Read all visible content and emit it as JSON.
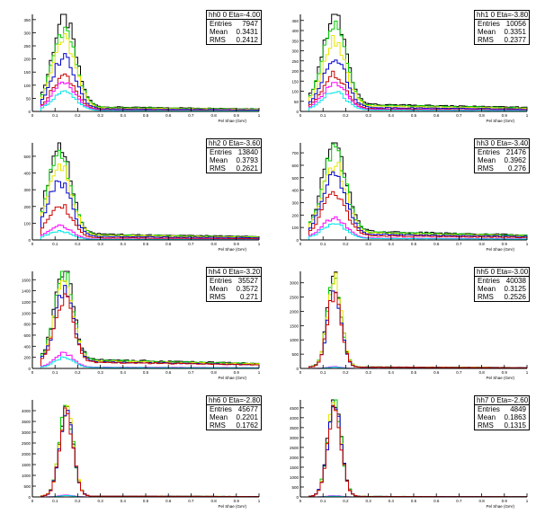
{
  "chart_data": [
    {
      "type": "line",
      "stats": {
        "name": "hh0",
        "eta": "0 Eta=-4.00",
        "entries_label": "Entries",
        "entries": "7947",
        "mean_label": "Mean",
        "mean": "0.3431",
        "rms_label": "RMS",
        "rms": "0.2412"
      },
      "ylim": [
        0,
        370
      ],
      "xlim": [
        0,
        1.0
      ],
      "yticks": [
        0,
        50,
        100,
        150,
        200,
        250,
        300,
        350
      ],
      "peak": 0.14,
      "width": 0.05,
      "tail": 20,
      "xlabel": "Pel Shae (GeV)",
      "series_peaks": [
        340,
        300,
        260,
        200,
        130,
        100,
        70
      ]
    },
    {
      "type": "line",
      "stats": {
        "name": "hh1",
        "eta": "0 Eta=-3.80",
        "entries_label": "Entries",
        "entries": "10056",
        "mean_label": "Mean",
        "mean": "0.3351",
        "rms_label": "RMS",
        "rms": "0.2377"
      },
      "ylim": [
        0,
        480
      ],
      "xlim": [
        0,
        1.0
      ],
      "yticks": [
        0,
        50,
        100,
        150,
        200,
        250,
        300,
        350,
        400,
        450
      ],
      "peak": 0.15,
      "width": 0.05,
      "tail": 40,
      "xlabel": "Pel Shae (GeV)",
      "series_peaks": [
        440,
        390,
        330,
        250,
        170,
        130,
        90
      ]
    },
    {
      "type": "line",
      "stats": {
        "name": "hh2",
        "eta": "0 Eta=-3.60",
        "entries_label": "Entries",
        "entries": "13840",
        "mean_label": "Mean",
        "mean": "0.3793",
        "rms_label": "RMS",
        "rms": "0.2621"
      },
      "ylim": [
        0,
        580
      ],
      "xlim": [
        0,
        1.0
      ],
      "yticks": [
        0,
        100,
        200,
        300,
        400,
        500
      ],
      "peak": 0.12,
      "width": 0.05,
      "tail": 40,
      "xlabel": "Pel Shae (GeV)",
      "series_peaks": [
        540,
        480,
        430,
        330,
        200,
        80,
        50
      ]
    },
    {
      "type": "line",
      "stats": {
        "name": "hh3",
        "eta": "0 Eta=-3.40",
        "entries_label": "Entries",
        "entries": "21476",
        "mean_label": "Mean",
        "mean": "0.3962",
        "rms_label": "RMS",
        "rms": "0.276"
      },
      "ylim": [
        0,
        780
      ],
      "xlim": [
        0,
        1.0
      ],
      "yticks": [
        0,
        100,
        200,
        300,
        400,
        500,
        600,
        700
      ],
      "peak": 0.15,
      "width": 0.05,
      "tail": 80,
      "xlabel": "Pel Shae (GeV)",
      "series_peaks": [
        720,
        650,
        560,
        480,
        350,
        160,
        120
      ]
    },
    {
      "type": "line",
      "stats": {
        "name": "hh4",
        "eta": "0 Eta=-3.20",
        "entries_label": "Entries",
        "entries": "35527",
        "mean_label": "Mean",
        "mean": "0.3572",
        "rms_label": "RMS",
        "rms": "0.271"
      },
      "ylim": [
        0,
        1750
      ],
      "xlim": [
        0,
        1.0
      ],
      "yticks": [
        0,
        200,
        400,
        600,
        800,
        1000,
        1200,
        1400,
        1600
      ],
      "peak": 0.14,
      "width": 0.04,
      "tail": 180,
      "xlabel": "Pel Shae (GeV)",
      "series_peaks": [
        1650,
        1550,
        1400,
        1250,
        1150,
        250,
        180
      ]
    },
    {
      "type": "line",
      "stats": {
        "name": "hh5",
        "eta": "0 Eta=-3.00",
        "entries_label": "Entries",
        "entries": "40038",
        "mean_label": "Mean",
        "mean": "0.3125",
        "rms_label": "RMS",
        "rms": "0.2526"
      },
      "ylim": [
        0,
        3400
      ],
      "xlim": [
        0,
        1.0
      ],
      "yticks": [
        0,
        500,
        1000,
        1500,
        2000,
        2500,
        3000
      ],
      "peak": 0.15,
      "width": 0.03,
      "tail": 60,
      "xlabel": "Pel Shae (GeV)",
      "series_peaks": [
        3250,
        3200,
        3150,
        2700,
        2600,
        60,
        40
      ]
    },
    {
      "type": "line",
      "stats": {
        "name": "hh6",
        "eta": "0 Eta=-2.80",
        "entries_label": "Entries",
        "entries": "45677",
        "mean_label": "Mean",
        "mean": "0.2201",
        "rms_label": "RMS",
        "rms": "0.1762"
      },
      "ylim": [
        0,
        4500
      ],
      "xlim": [
        0,
        1.0
      ],
      "yticks": [
        0,
        500,
        1000,
        1500,
        2000,
        2500,
        3000,
        3500,
        4000
      ],
      "peak": 0.15,
      "width": 0.03,
      "tail": 40,
      "xlabel": "Pel Shae (GeV)",
      "series_peaks": [
        4150,
        4100,
        4050,
        3900,
        3800,
        80,
        60
      ]
    },
    {
      "type": "line",
      "stats": {
        "name": "hh7",
        "eta": "0 Eta=-2.60",
        "entries_label": "Entries",
        "entries": "4849",
        "mean_label": "Mean",
        "mean": "0.1863",
        "rms_label": "RMS",
        "rms": "0.1315"
      },
      "ylim": [
        0,
        4900
      ],
      "xlim": [
        0,
        1.0
      ],
      "yticks": [
        0,
        500,
        1000,
        1500,
        2000,
        2500,
        3000,
        3500,
        4000,
        4500
      ],
      "peak": 0.15,
      "width": 0.03,
      "tail": 30,
      "xlabel": "Pel Shae (GeV)",
      "series_peaks": [
        4750,
        4700,
        4650,
        4500,
        4400,
        60,
        40
      ]
    }
  ],
  "colors": {
    "series": [
      "#000000",
      "#00cc00",
      "#e6e600",
      "#0000cc",
      "#cc0000",
      "#ff00ff",
      "#00e6e6"
    ],
    "axis": "#000000",
    "background": "#ffffff"
  },
  "xticks": [
    0,
    0.1,
    0.2,
    0.3,
    0.4,
    0.5,
    0.6,
    0.7,
    0.8,
    0.9,
    1.0
  ]
}
